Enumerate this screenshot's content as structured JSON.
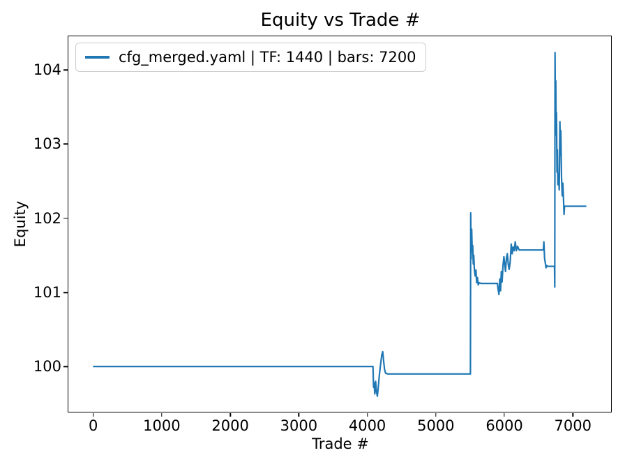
{
  "colors": {
    "line": "#1f77b4",
    "spine": "#000000",
    "text": "#000000",
    "legend_border": "#cccccc",
    "background": "#ffffff"
  },
  "chart_data": {
    "type": "line",
    "title": "Equity vs Trade #",
    "xlabel": "Trade #",
    "ylabel": "Equity",
    "xlim": [
      -360,
      7560
    ],
    "ylim": [
      99.39,
      104.45
    ],
    "grid": false,
    "x_ticks": {
      "values": [
        0,
        1000,
        2000,
        3000,
        4000,
        5000,
        6000,
        7000
      ],
      "labels": [
        "0",
        "1000",
        "2000",
        "3000",
        "4000",
        "5000",
        "6000",
        "7000"
      ]
    },
    "y_ticks": {
      "values": [
        100,
        101,
        102,
        103,
        104
      ],
      "labels": [
        "100",
        "101",
        "102",
        "103",
        "104"
      ]
    },
    "legend": {
      "position": "upper left",
      "entries": [
        {
          "label": "cfg_merged.yaml | TF: 1440 | bars: 7200",
          "color": "#1f77b4"
        }
      ]
    },
    "series": [
      {
        "name": "cfg_merged.yaml | TF: 1440 | bars: 7200",
        "color": "#1f77b4",
        "points": [
          [
            0,
            100.0
          ],
          [
            4086,
            100.0
          ],
          [
            4094,
            99.72
          ],
          [
            4102,
            99.78
          ],
          [
            4112,
            99.63
          ],
          [
            4124,
            99.8
          ],
          [
            4136,
            99.66
          ],
          [
            4150,
            99.6
          ],
          [
            4163,
            99.72
          ],
          [
            4178,
            99.88
          ],
          [
            4196,
            100.02
          ],
          [
            4215,
            100.16
          ],
          [
            4228,
            100.2
          ],
          [
            4240,
            100.08
          ],
          [
            4255,
            99.96
          ],
          [
            4270,
            99.91
          ],
          [
            4300,
            99.9
          ],
          [
            5508,
            99.9
          ],
          [
            5512,
            102.07
          ],
          [
            5518,
            101.45
          ],
          [
            5526,
            101.85
          ],
          [
            5534,
            101.55
          ],
          [
            5541,
            101.63
          ],
          [
            5549,
            101.38
          ],
          [
            5557,
            101.5
          ],
          [
            5566,
            101.3
          ],
          [
            5577,
            101.22
          ],
          [
            5588,
            101.3
          ],
          [
            5598,
            101.13
          ],
          [
            5610,
            101.2
          ],
          [
            5622,
            101.1
          ],
          [
            5636,
            101.13
          ],
          [
            5660,
            101.12
          ],
          [
            5902,
            101.12
          ],
          [
            5912,
            101.04
          ],
          [
            5924,
            100.97
          ],
          [
            5936,
            101.18
          ],
          [
            5947,
            101.02
          ],
          [
            5959,
            101.28
          ],
          [
            5970,
            101.14
          ],
          [
            5983,
            101.36
          ],
          [
            5996,
            101.48
          ],
          [
            6008,
            101.38
          ],
          [
            6020,
            101.28
          ],
          [
            6033,
            101.46
          ],
          [
            6046,
            101.52
          ],
          [
            6059,
            101.38
          ],
          [
            6073,
            101.31
          ],
          [
            6088,
            101.41
          ],
          [
            6103,
            101.65
          ],
          [
            6117,
            101.52
          ],
          [
            6131,
            101.61
          ],
          [
            6146,
            101.56
          ],
          [
            6162,
            101.68
          ],
          [
            6178,
            101.56
          ],
          [
            6196,
            101.62
          ],
          [
            6218,
            101.57
          ],
          [
            6572,
            101.57
          ],
          [
            6580,
            101.68
          ],
          [
            6590,
            101.46
          ],
          [
            6600,
            101.4
          ],
          [
            6611,
            101.33
          ],
          [
            6622,
            101.36
          ],
          [
            6632,
            101.35
          ],
          [
            6734,
            101.35
          ],
          [
            6738,
            101.07
          ],
          [
            6743,
            104.23
          ],
          [
            6749,
            103.28
          ],
          [
            6754,
            103.85
          ],
          [
            6759,
            103.12
          ],
          [
            6764,
            103.42
          ],
          [
            6771,
            102.62
          ],
          [
            6777,
            102.92
          ],
          [
            6784,
            102.45
          ],
          [
            6794,
            102.6
          ],
          [
            6804,
            102.38
          ],
          [
            6814,
            103.3
          ],
          [
            6821,
            102.85
          ],
          [
            6827,
            103.18
          ],
          [
            6837,
            102.55
          ],
          [
            6847,
            102.3
          ],
          [
            6857,
            102.47
          ],
          [
            6867,
            102.24
          ],
          [
            6874,
            102.05
          ],
          [
            6881,
            102.16
          ],
          [
            7200,
            102.16
          ]
        ]
      }
    ]
  }
}
